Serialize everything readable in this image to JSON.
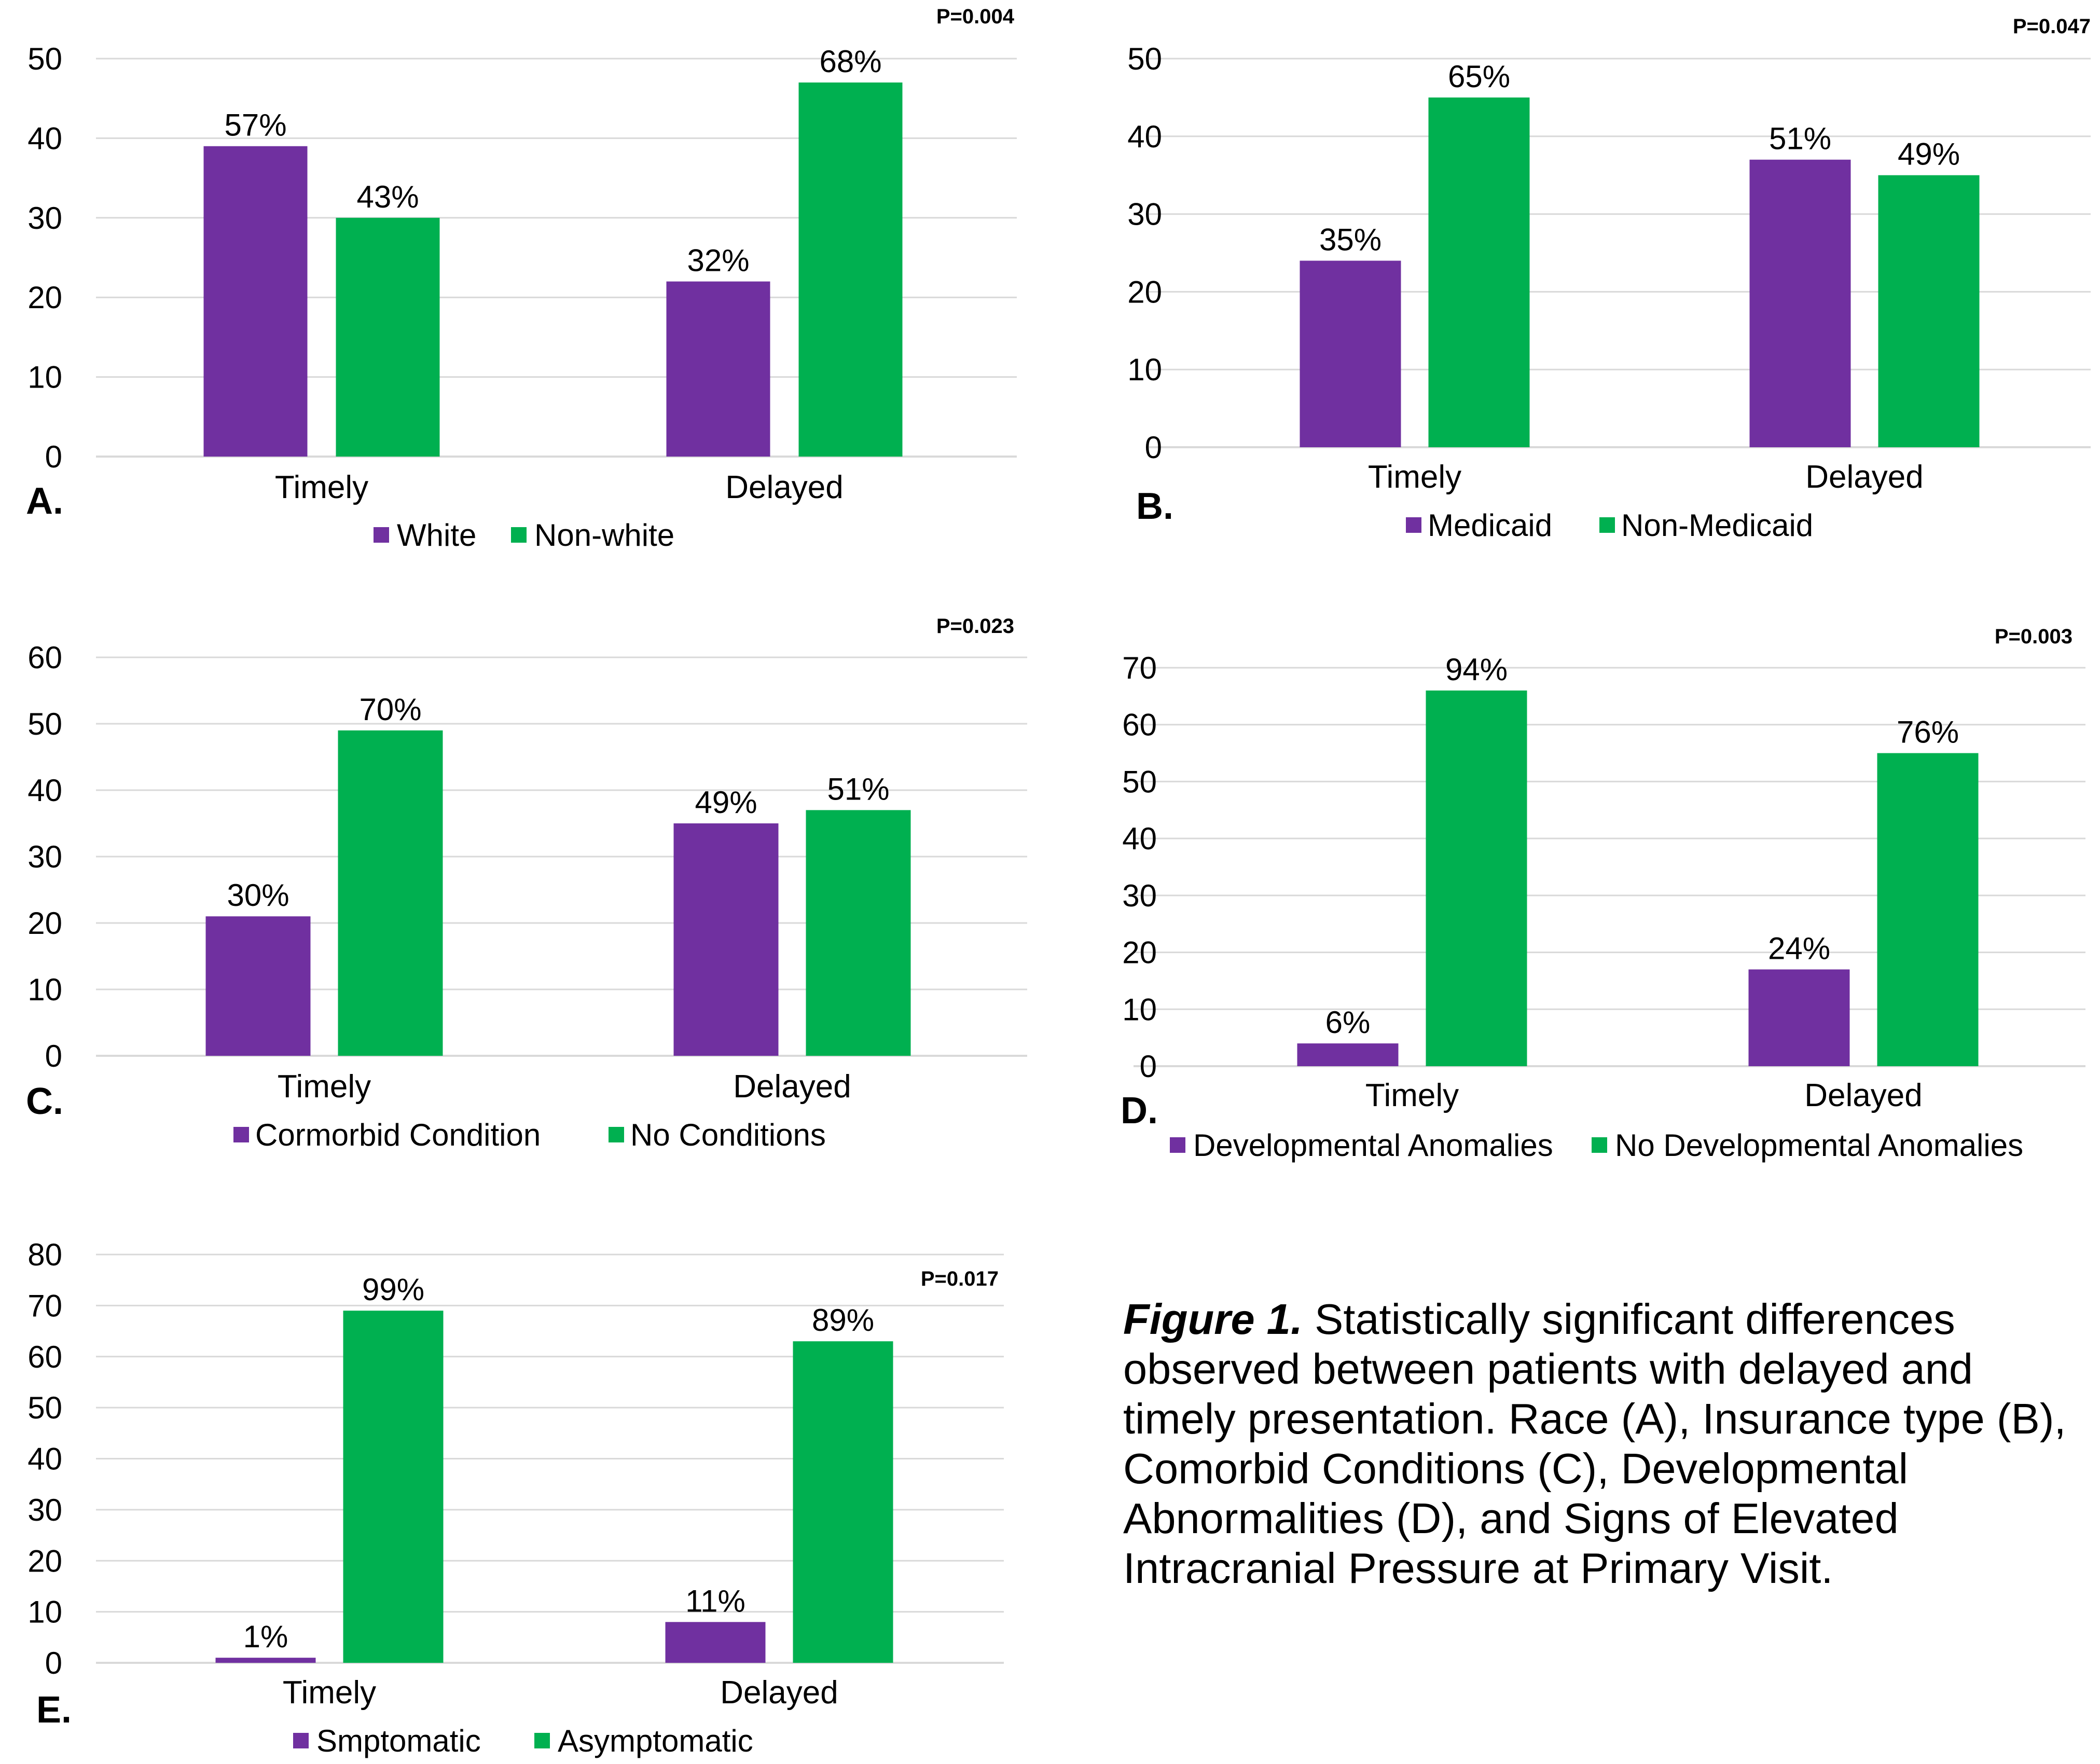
{
  "colors": {
    "series_a": "#7030a0",
    "series_b": "#00b050",
    "grid": "#d9d9d9",
    "text": "#000000"
  },
  "chart_data": [
    {
      "type": "bar",
      "panel_label": "A.",
      "p_value": "P=0.004",
      "categories": [
        "Timely",
        "Delayed"
      ],
      "yticks": [
        0,
        10,
        20,
        30,
        40,
        50
      ],
      "ylim": [
        0,
        50
      ],
      "grid": true,
      "legend_position": "bottom",
      "series": [
        {
          "name": "White",
          "values": [
            39,
            22
          ],
          "labels": [
            "57%",
            "32%"
          ]
        },
        {
          "name": "Non-white",
          "values": [
            30,
            47
          ],
          "labels": [
            "43%",
            "68%"
          ]
        }
      ]
    },
    {
      "type": "bar",
      "panel_label": "B.",
      "p_value": "P=0.047",
      "categories": [
        "Timely",
        "Delayed"
      ],
      "yticks": [
        0,
        10,
        20,
        30,
        40,
        50
      ],
      "ylim": [
        0,
        50
      ],
      "grid": true,
      "legend_position": "bottom",
      "series": [
        {
          "name": "Medicaid",
          "values": [
            24,
            37
          ],
          "labels": [
            "35%",
            "51%"
          ]
        },
        {
          "name": "Non-Medicaid",
          "values": [
            45,
            35
          ],
          "labels": [
            "65%",
            "49%"
          ]
        }
      ]
    },
    {
      "type": "bar",
      "panel_label": "C.",
      "p_value": "P=0.023",
      "categories": [
        "Timely",
        "Delayed"
      ],
      "yticks": [
        0,
        10,
        20,
        30,
        40,
        50,
        60
      ],
      "ylim": [
        0,
        60
      ],
      "grid": true,
      "legend_position": "bottom",
      "series": [
        {
          "name": "Cormorbid Condition",
          "values": [
            21,
            35
          ],
          "labels": [
            "30%",
            "49%"
          ]
        },
        {
          "name": "No Conditions",
          "values": [
            49,
            37
          ],
          "labels": [
            "70%",
            "51%"
          ]
        }
      ]
    },
    {
      "type": "bar",
      "panel_label": "D.",
      "p_value": "P=0.003",
      "categories": [
        "Timely",
        "Delayed"
      ],
      "yticks": [
        0,
        10,
        20,
        30,
        40,
        50,
        60,
        70
      ],
      "ylim": [
        0,
        70
      ],
      "grid": true,
      "legend_position": "bottom",
      "series": [
        {
          "name": "Developmental Anomalies",
          "values": [
            4,
            17
          ],
          "labels": [
            "6%",
            "24%"
          ]
        },
        {
          "name": "No Developmental Anomalies",
          "values": [
            66,
            55
          ],
          "labels": [
            "94%",
            "76%"
          ]
        }
      ]
    },
    {
      "type": "bar",
      "panel_label": "E.",
      "p_value": "P=0.017",
      "categories": [
        "Timely",
        "Delayed"
      ],
      "yticks": [
        0,
        10,
        20,
        30,
        40,
        50,
        60,
        70,
        80
      ],
      "ylim": [
        0,
        80
      ],
      "grid": true,
      "legend_position": "bottom",
      "series": [
        {
          "name": "Smptomatic",
          "values": [
            1,
            8
          ],
          "labels": [
            "1%",
            "11%"
          ]
        },
        {
          "name": "Asymptomatic",
          "values": [
            69,
            63
          ],
          "labels": [
            "99%",
            "89%"
          ]
        }
      ]
    }
  ],
  "caption": {
    "lead": "Figure 1.",
    "text": " Statistically significant differences observed between patients with delayed and timely presentation. Race (A), Insurance type (B), Comorbid Conditions (C), Developmental Abnormalities (D), and Signs of Elevated Intracranial Pressure at Primary Visit."
  }
}
